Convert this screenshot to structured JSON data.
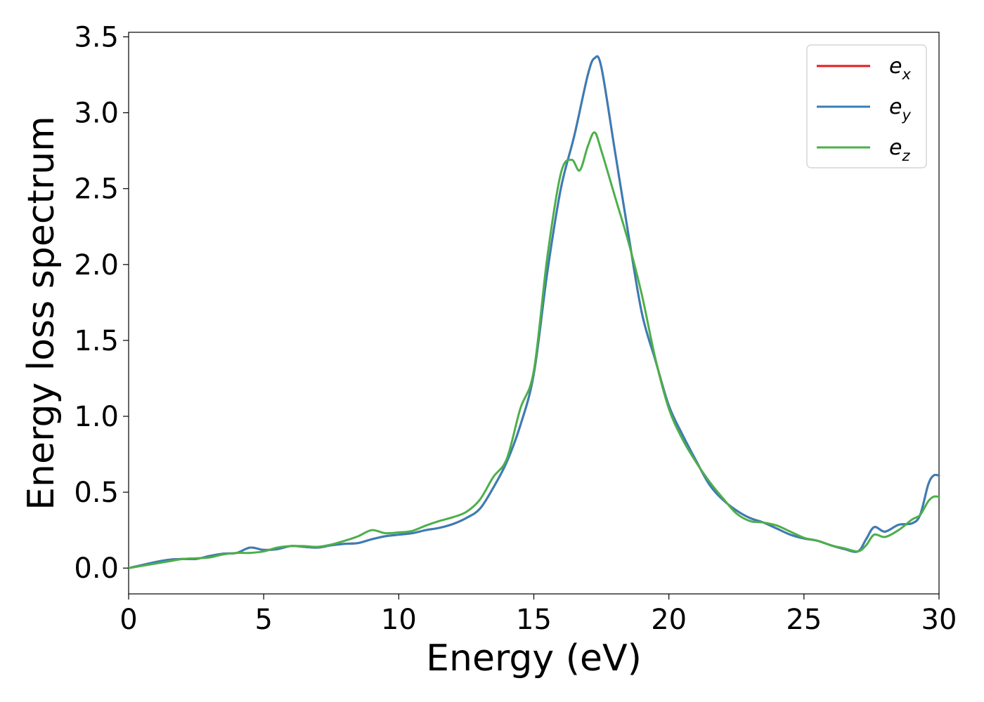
{
  "chart_data": {
    "type": "line",
    "xlabel": "Energy (eV)",
    "ylabel": "Energy loss spectrum",
    "xlim": [
      0,
      30
    ],
    "ylim": [
      -0.17,
      3.53
    ],
    "x_ticks": [
      "0",
      "5",
      "10",
      "15",
      "20",
      "25",
      "30"
    ],
    "y_ticks": [
      "0.0",
      "0.5",
      "1.0",
      "1.5",
      "2.0",
      "2.5",
      "3.0",
      "3.5"
    ],
    "grid": false,
    "legend_position": "top-right",
    "series": [
      {
        "name": "e_x",
        "legend_main": "e",
        "legend_sub": "x",
        "color": "#e41a1c",
        "points": [
          [
            0,
            0.0
          ],
          [
            1,
            0.04
          ],
          [
            1.5,
            0.055
          ],
          [
            2,
            0.06
          ],
          [
            2.5,
            0.06
          ],
          [
            3,
            0.08
          ],
          [
            3.5,
            0.095
          ],
          [
            4,
            0.1
          ],
          [
            4.5,
            0.135
          ],
          [
            5,
            0.12
          ],
          [
            5.5,
            0.125
          ],
          [
            6,
            0.145
          ],
          [
            6.5,
            0.14
          ],
          [
            7,
            0.135
          ],
          [
            7.5,
            0.15
          ],
          [
            8,
            0.16
          ],
          [
            8.5,
            0.165
          ],
          [
            9,
            0.19
          ],
          [
            9.5,
            0.21
          ],
          [
            10,
            0.22
          ],
          [
            10.5,
            0.23
          ],
          [
            11,
            0.25
          ],
          [
            11.5,
            0.265
          ],
          [
            12,
            0.29
          ],
          [
            12.5,
            0.33
          ],
          [
            13,
            0.39
          ],
          [
            13.5,
            0.53
          ],
          [
            14,
            0.7
          ],
          [
            14.5,
            0.94
          ],
          [
            15,
            1.28
          ],
          [
            15.5,
            1.95
          ],
          [
            16,
            2.5
          ],
          [
            16.5,
            2.85
          ],
          [
            17,
            3.25
          ],
          [
            17.25,
            3.36
          ],
          [
            17.5,
            3.3
          ],
          [
            18,
            2.75
          ],
          [
            18.5,
            2.2
          ],
          [
            19,
            1.68
          ],
          [
            19.5,
            1.37
          ],
          [
            20,
            1.07
          ],
          [
            20.5,
            0.88
          ],
          [
            21,
            0.71
          ],
          [
            21.5,
            0.55
          ],
          [
            22,
            0.45
          ],
          [
            22.5,
            0.38
          ],
          [
            23,
            0.33
          ],
          [
            23.5,
            0.3
          ],
          [
            24,
            0.26
          ],
          [
            24.5,
            0.22
          ],
          [
            25,
            0.195
          ],
          [
            25.5,
            0.18
          ],
          [
            26,
            0.15
          ],
          [
            26.5,
            0.125
          ],
          [
            27,
            0.11
          ],
          [
            27.3,
            0.19
          ],
          [
            27.6,
            0.27
          ],
          [
            28,
            0.24
          ],
          [
            28.5,
            0.285
          ],
          [
            29,
            0.295
          ],
          [
            29.3,
            0.35
          ],
          [
            29.6,
            0.55
          ],
          [
            29.8,
            0.61
          ],
          [
            30,
            0.61
          ]
        ]
      },
      {
        "name": "e_y",
        "legend_main": "e",
        "legend_sub": "y",
        "color": "#377eb8",
        "points": [
          [
            0,
            0.0
          ],
          [
            1,
            0.04
          ],
          [
            1.5,
            0.055
          ],
          [
            2,
            0.06
          ],
          [
            2.5,
            0.06
          ],
          [
            3,
            0.08
          ],
          [
            3.5,
            0.095
          ],
          [
            4,
            0.1
          ],
          [
            4.5,
            0.135
          ],
          [
            5,
            0.12
          ],
          [
            5.5,
            0.125
          ],
          [
            6,
            0.145
          ],
          [
            6.5,
            0.14
          ],
          [
            7,
            0.135
          ],
          [
            7.5,
            0.15
          ],
          [
            8,
            0.16
          ],
          [
            8.5,
            0.165
          ],
          [
            9,
            0.19
          ],
          [
            9.5,
            0.21
          ],
          [
            10,
            0.22
          ],
          [
            10.5,
            0.23
          ],
          [
            11,
            0.25
          ],
          [
            11.5,
            0.265
          ],
          [
            12,
            0.29
          ],
          [
            12.5,
            0.33
          ],
          [
            13,
            0.39
          ],
          [
            13.5,
            0.53
          ],
          [
            14,
            0.7
          ],
          [
            14.5,
            0.94
          ],
          [
            15,
            1.28
          ],
          [
            15.5,
            1.95
          ],
          [
            16,
            2.5
          ],
          [
            16.5,
            2.85
          ],
          [
            17,
            3.25
          ],
          [
            17.25,
            3.36
          ],
          [
            17.5,
            3.3
          ],
          [
            18,
            2.75
          ],
          [
            18.5,
            2.2
          ],
          [
            19,
            1.68
          ],
          [
            19.5,
            1.37
          ],
          [
            20,
            1.07
          ],
          [
            20.5,
            0.88
          ],
          [
            21,
            0.71
          ],
          [
            21.5,
            0.55
          ],
          [
            22,
            0.45
          ],
          [
            22.5,
            0.38
          ],
          [
            23,
            0.33
          ],
          [
            23.5,
            0.3
          ],
          [
            24,
            0.26
          ],
          [
            24.5,
            0.22
          ],
          [
            25,
            0.195
          ],
          [
            25.5,
            0.18
          ],
          [
            26,
            0.15
          ],
          [
            26.5,
            0.125
          ],
          [
            27,
            0.11
          ],
          [
            27.3,
            0.19
          ],
          [
            27.6,
            0.27
          ],
          [
            28,
            0.24
          ],
          [
            28.5,
            0.285
          ],
          [
            29,
            0.295
          ],
          [
            29.3,
            0.35
          ],
          [
            29.6,
            0.55
          ],
          [
            29.8,
            0.61
          ],
          [
            30,
            0.61
          ]
        ]
      },
      {
        "name": "e_z",
        "legend_main": "e",
        "legend_sub": "z",
        "color": "#4daf4a",
        "points": [
          [
            0,
            0.0
          ],
          [
            1,
            0.03
          ],
          [
            1.5,
            0.045
          ],
          [
            2,
            0.06
          ],
          [
            2.5,
            0.065
          ],
          [
            3,
            0.07
          ],
          [
            3.5,
            0.09
          ],
          [
            4,
            0.1
          ],
          [
            4.5,
            0.1
          ],
          [
            5,
            0.11
          ],
          [
            5.5,
            0.135
          ],
          [
            6,
            0.145
          ],
          [
            6.5,
            0.145
          ],
          [
            7,
            0.14
          ],
          [
            7.5,
            0.155
          ],
          [
            8,
            0.18
          ],
          [
            8.5,
            0.21
          ],
          [
            9,
            0.25
          ],
          [
            9.5,
            0.23
          ],
          [
            10,
            0.235
          ],
          [
            10.5,
            0.245
          ],
          [
            11,
            0.28
          ],
          [
            11.5,
            0.31
          ],
          [
            12,
            0.335
          ],
          [
            12.5,
            0.37
          ],
          [
            13,
            0.45
          ],
          [
            13.5,
            0.6
          ],
          [
            14,
            0.72
          ],
          [
            14.5,
            1.05
          ],
          [
            15,
            1.3
          ],
          [
            15.5,
            2.05
          ],
          [
            16,
            2.6
          ],
          [
            16.4,
            2.69
          ],
          [
            16.7,
            2.62
          ],
          [
            17,
            2.78
          ],
          [
            17.25,
            2.87
          ],
          [
            17.5,
            2.75
          ],
          [
            18,
            2.45
          ],
          [
            18.5,
            2.15
          ],
          [
            19,
            1.8
          ],
          [
            19.5,
            1.38
          ],
          [
            20,
            1.05
          ],
          [
            20.5,
            0.85
          ],
          [
            21,
            0.7
          ],
          [
            21.5,
            0.57
          ],
          [
            22,
            0.46
          ],
          [
            22.5,
            0.36
          ],
          [
            23,
            0.31
          ],
          [
            23.5,
            0.3
          ],
          [
            24,
            0.28
          ],
          [
            24.5,
            0.24
          ],
          [
            25,
            0.2
          ],
          [
            25.5,
            0.18
          ],
          [
            26,
            0.15
          ],
          [
            26.5,
            0.13
          ],
          [
            27,
            0.11
          ],
          [
            27.3,
            0.15
          ],
          [
            27.6,
            0.22
          ],
          [
            28,
            0.205
          ],
          [
            28.5,
            0.25
          ],
          [
            29,
            0.32
          ],
          [
            29.3,
            0.35
          ],
          [
            29.6,
            0.44
          ],
          [
            29.8,
            0.47
          ],
          [
            30,
            0.47
          ]
        ]
      }
    ]
  }
}
